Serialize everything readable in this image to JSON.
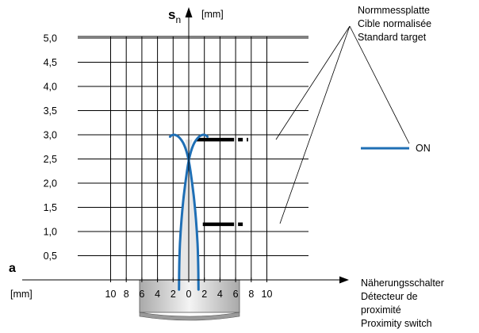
{
  "chart_data": {
    "type": "line",
    "title": "",
    "y_axis": {
      "symbol": "s",
      "subscript": "n",
      "unit": "[mm]",
      "range": [
        0,
        5.4
      ],
      "ticks": [
        "5,0",
        "4,5",
        "4,0",
        "3,5",
        "3,0",
        "2,5",
        "2,0",
        "1,5",
        "1,0",
        "0,5"
      ],
      "tick_values": [
        5.0,
        4.5,
        4.0,
        3.5,
        3.0,
        2.5,
        2.0,
        1.5,
        1.0,
        0.5
      ]
    },
    "x_axis": {
      "symbol": "a",
      "unit": "[mm]",
      "range": [
        -12.3,
        12.3
      ],
      "ticks": [
        "10",
        "8",
        "6",
        "4",
        "2",
        "0",
        "2",
        "4",
        "6",
        "8",
        "10"
      ],
      "tick_values": [
        -10,
        -8,
        -6,
        -4,
        -2,
        0,
        2,
        4,
        6,
        8,
        10
      ]
    },
    "grid": true,
    "series": [
      {
        "name": "ON",
        "color": "#1f6fb5",
        "left_branch": {
          "x": [
            -1.25,
            -1.2,
            -1.05,
            -0.8,
            -0.45,
            0.0,
            0.55,
            1.2,
            1.7,
            2.05,
            2.3,
            2.4
          ],
          "y": [
            -0.2,
            0.5,
            1.0,
            1.5,
            2.0,
            2.5,
            2.8,
            2.95,
            3.0,
            3.0,
            2.98,
            2.96
          ]
        },
        "right_branch": {
          "x": [
            1.25,
            1.2,
            1.05,
            0.8,
            0.45,
            0.0,
            -0.55,
            -1.2,
            -1.7,
            -2.05,
            -2.3,
            -2.4
          ],
          "y": [
            -0.2,
            0.5,
            1.0,
            1.5,
            2.0,
            2.5,
            2.8,
            2.95,
            3.0,
            3.0,
            2.98,
            2.96
          ]
        }
      }
    ],
    "targets": [
      {
        "x_start": 1.0,
        "x_solid_end": 5.8,
        "x_dash_end": 7.6,
        "y": 2.9
      },
      {
        "x_start": 1.8,
        "x_solid_end": 5.8,
        "x_dash_end": 7.3,
        "y": 1.15
      }
    ],
    "legend": {
      "label": "ON",
      "color": "#1f6fb5",
      "placement": "right"
    },
    "annotations": {
      "target_label": [
        "Normmessplatte",
        "Cible normalisée",
        "Standard target"
      ],
      "sensor_label": [
        "Näherungsschalter",
        "Détecteur de",
        "proximité",
        "Proximity switch"
      ]
    }
  }
}
